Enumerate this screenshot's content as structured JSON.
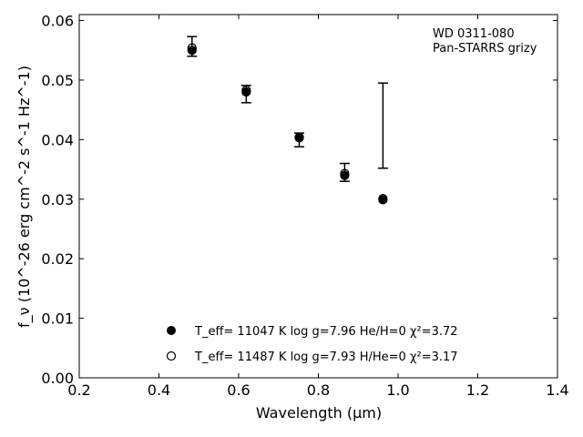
{
  "chart_data": {
    "type": "scatter",
    "annotation_lines": [
      "WD 0311-080",
      "Pan-STARRS grizy"
    ],
    "xlabel": "Wavelength (μm)",
    "ylabel": "f_ν (10^-26 erg cm^-2 s^-1 Hz^-1)",
    "xlim": [
      0.2,
      1.4
    ],
    "ylim": [
      0.0,
      0.061
    ],
    "xticks": [
      0.2,
      0.4,
      0.6,
      0.8,
      1.0,
      1.2,
      1.4
    ],
    "xtick_labels": [
      "0.2",
      "0.4",
      "0.6",
      "0.8",
      "1.0",
      "1.2",
      "1.4"
    ],
    "yticks": [
      0.0,
      0.01,
      0.02,
      0.03,
      0.04,
      0.05,
      0.06
    ],
    "ytick_labels": [
      "0.00",
      "0.01",
      "0.02",
      "0.03",
      "0.04",
      "0.05",
      "0.06"
    ],
    "grid": false,
    "legend_position": "lower-center",
    "observed": {
      "x": [
        0.483,
        0.619,
        0.752,
        0.866,
        0.962
      ],
      "lower": [
        0.054,
        0.0462,
        0.0388,
        0.033,
        0.0352
      ],
      "upper": [
        0.0573,
        0.0491,
        0.0411,
        0.036,
        0.0495
      ]
    },
    "series": [
      {
        "name": "T_eff= 11047 K  log g=7.96  He/H=0  χ²=3.72",
        "marker": "filled-circle",
        "x": [
          0.483,
          0.619,
          0.752,
          0.866,
          0.962
        ],
        "y": [
          0.055,
          0.048,
          0.0403,
          0.034,
          0.0299
        ]
      },
      {
        "name": "T_eff= 11487 K  log g=7.93  H/He=0  χ²=3.17",
        "marker": "open-circle",
        "x": [
          0.483,
          0.619,
          0.752,
          0.866,
          0.962
        ],
        "y": [
          0.0554,
          0.0483,
          0.0404,
          0.0343,
          0.0301
        ]
      }
    ]
  }
}
